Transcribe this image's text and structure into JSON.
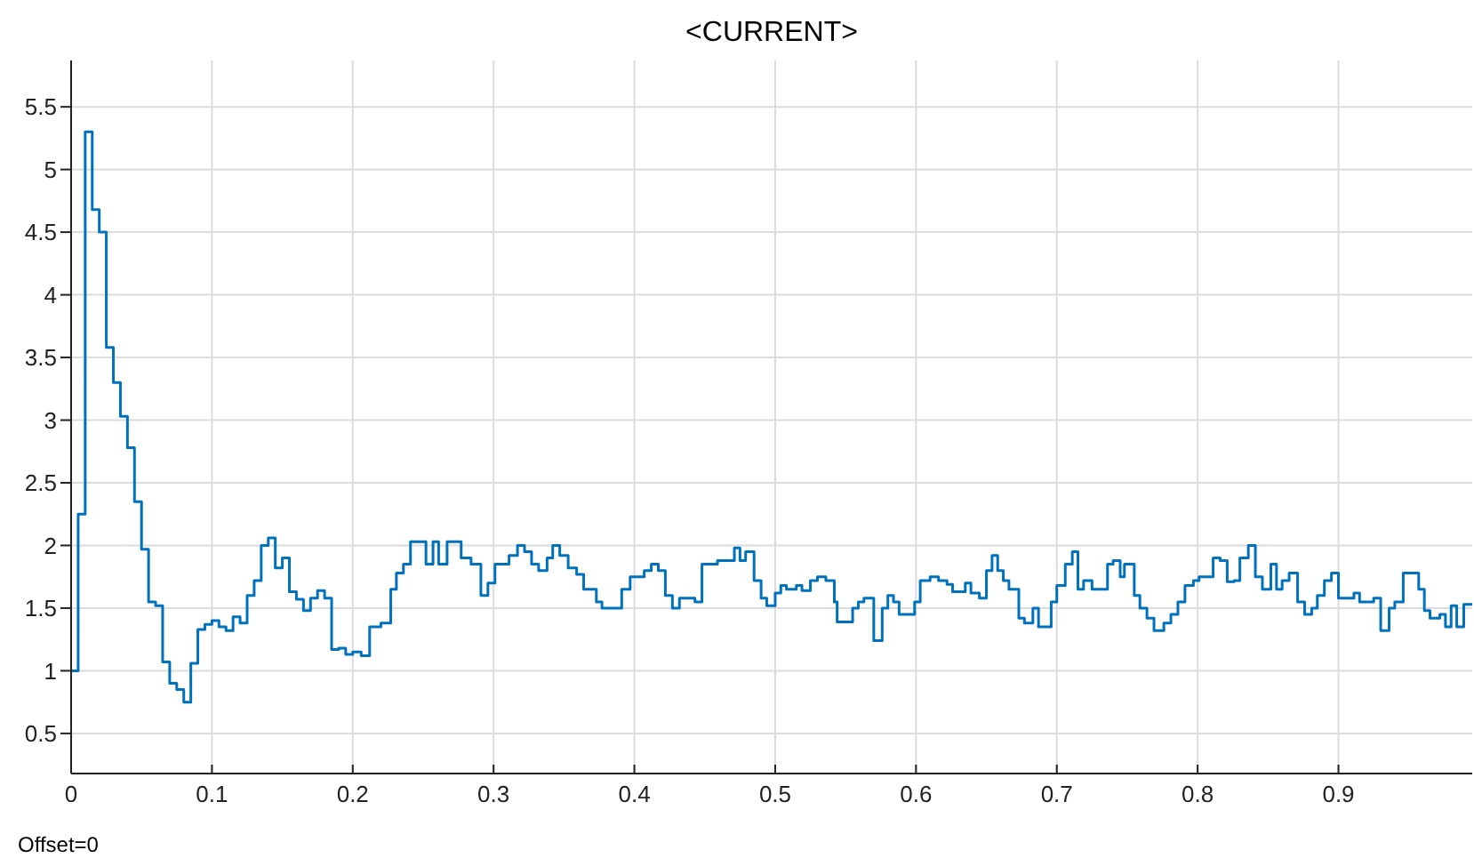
{
  "chart_data": {
    "type": "step",
    "title": "<CURRENT>",
    "annotations": [
      "Offset=0"
    ],
    "x": [
      0,
      0.005,
      0.01,
      0.015,
      0.02,
      0.025,
      0.03,
      0.035,
      0.04,
      0.045,
      0.05,
      0.055,
      0.06,
      0.065,
      0.07,
      0.075,
      0.08,
      0.085,
      0.09,
      0.095,
      0.1,
      0.105,
      0.11,
      0.115,
      0.12,
      0.125,
      0.13,
      0.135,
      0.14,
      0.145,
      0.15,
      0.155,
      0.16,
      0.165,
      0.17,
      0.175,
      0.18,
      0.185,
      0.19,
      0.195,
      0.2,
      0.206,
      0.212,
      0.22,
      0.227,
      0.231,
      0.236,
      0.241,
      0.252,
      0.257,
      0.261,
      0.267,
      0.277,
      0.284,
      0.291,
      0.296,
      0.301,
      0.311,
      0.317,
      0.322,
      0.327,
      0.332,
      0.338,
      0.342,
      0.347,
      0.353,
      0.359,
      0.364,
      0.373,
      0.377,
      0.391,
      0.397,
      0.407,
      0.412,
      0.417,
      0.422,
      0.427,
      0.432,
      0.443,
      0.448,
      0.459,
      0.471,
      0.475,
      0.479,
      0.485,
      0.49,
      0.494,
      0.5,
      0.504,
      0.508,
      0.515,
      0.519,
      0.525,
      0.53,
      0.536,
      0.542,
      0.544,
      0.555,
      0.559,
      0.563,
      0.57,
      0.576,
      0.58,
      0.584,
      0.588,
      0.599,
      0.603,
      0.61,
      0.616,
      0.622,
      0.626,
      0.635,
      0.639,
      0.645,
      0.65,
      0.654,
      0.658,
      0.662,
      0.666,
      0.673,
      0.677,
      0.683,
      0.687,
      0.696,
      0.7,
      0.706,
      0.711,
      0.715,
      0.719,
      0.725,
      0.736,
      0.74,
      0.745,
      0.748,
      0.755,
      0.759,
      0.764,
      0.769,
      0.776,
      0.781,
      0.786,
      0.791,
      0.797,
      0.801,
      0.811,
      0.816,
      0.821,
      0.826,
      0.83,
      0.836,
      0.841,
      0.846,
      0.852,
      0.856,
      0.86,
      0.865,
      0.871,
      0.876,
      0.881,
      0.885,
      0.89,
      0.895,
      0.9,
      0.911,
      0.915,
      0.925,
      0.93,
      0.936,
      0.94,
      0.946,
      0.957,
      0.961,
      0.965,
      0.972,
      0.976,
      0.98,
      0.984,
      0.989,
      0.995
    ],
    "series": [
      {
        "color": "#0072bd",
        "values": [
          1.0,
          2.25,
          5.3,
          4.68,
          4.5,
          3.58,
          3.3,
          3.03,
          2.78,
          2.35,
          1.97,
          1.55,
          1.52,
          1.07,
          0.9,
          0.85,
          0.75,
          1.06,
          1.33,
          1.37,
          1.4,
          1.35,
          1.32,
          1.43,
          1.38,
          1.6,
          1.72,
          2.0,
          2.06,
          1.82,
          1.9,
          1.63,
          1.57,
          1.48,
          1.58,
          1.64,
          1.58,
          1.17,
          1.18,
          1.13,
          1.15,
          1.12,
          1.35,
          1.38,
          1.65,
          1.78,
          1.85,
          2.03,
          1.85,
          2.03,
          1.85,
          2.03,
          1.9,
          1.85,
          1.6,
          1.7,
          1.85,
          1.92,
          2.0,
          1.95,
          1.85,
          1.8,
          1.9,
          2.0,
          1.92,
          1.82,
          1.77,
          1.65,
          1.55,
          1.5,
          1.65,
          1.75,
          1.8,
          1.85,
          1.8,
          1.6,
          1.5,
          1.58,
          1.55,
          1.85,
          1.88,
          1.98,
          1.88,
          1.95,
          1.72,
          1.58,
          1.52,
          1.62,
          1.68,
          1.65,
          1.68,
          1.64,
          1.72,
          1.75,
          1.72,
          1.55,
          1.39,
          1.5,
          1.55,
          1.58,
          1.24,
          1.5,
          1.6,
          1.55,
          1.45,
          1.55,
          1.72,
          1.75,
          1.72,
          1.69,
          1.63,
          1.7,
          1.62,
          1.58,
          1.8,
          1.92,
          1.8,
          1.72,
          1.65,
          1.42,
          1.38,
          1.5,
          1.35,
          1.55,
          1.68,
          1.85,
          1.95,
          1.65,
          1.72,
          1.65,
          1.85,
          1.88,
          1.75,
          1.85,
          1.6,
          1.5,
          1.42,
          1.32,
          1.38,
          1.45,
          1.55,
          1.68,
          1.72,
          1.75,
          1.9,
          1.88,
          1.71,
          1.72,
          1.9,
          2.0,
          1.75,
          1.65,
          1.85,
          1.65,
          1.72,
          1.78,
          1.55,
          1.45,
          1.5,
          1.6,
          1.72,
          1.78,
          1.58,
          1.62,
          1.55,
          1.58,
          1.32,
          1.5,
          1.55,
          1.78,
          1.65,
          1.48,
          1.42,
          1.45,
          1.35,
          1.52,
          1.35,
          1.53,
          1.53
        ]
      }
    ],
    "xlim": [
      0,
      0.995
    ],
    "xticks": [
      0,
      0.1,
      0.2,
      0.3,
      0.4,
      0.5,
      0.6,
      0.7,
      0.8,
      0.9
    ],
    "ylim": [
      0.18,
      5.87
    ],
    "yticks": [
      0.5,
      1,
      1.5,
      2,
      2.5,
      3,
      3.5,
      4,
      4.5,
      5,
      5.5
    ],
    "grid": true,
    "legend": false
  }
}
